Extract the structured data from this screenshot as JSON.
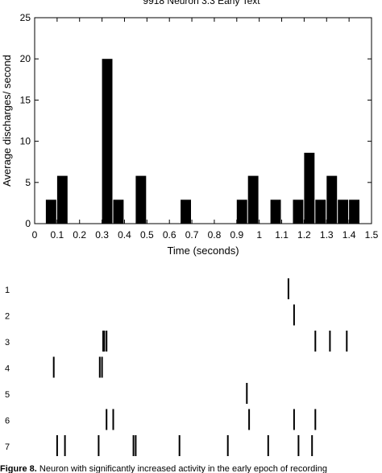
{
  "chart_data": [
    {
      "type": "bar",
      "title": "9918 Neuron 3.3 Early Text",
      "xlabel": "Time (seconds)",
      "ylabel": "Average discharges/ second",
      "xlim": [
        0,
        1.5
      ],
      "ylim": [
        0,
        25
      ],
      "xticks": [
        "0",
        "0.1",
        "0.2",
        "0.3",
        "0.4",
        "0.5",
        "0.6",
        "0.7",
        "0.8",
        "0.9",
        "1",
        "1.1",
        "1.2",
        "1.3",
        "1.4",
        "1.5"
      ],
      "yticks": [
        "0",
        "5",
        "10",
        "15",
        "20",
        "25"
      ],
      "grid": false,
      "bin_width": 0.05,
      "bars": [
        {
          "x": 0.05,
          "value": 2.9
        },
        {
          "x": 0.1,
          "value": 5.8
        },
        {
          "x": 0.3,
          "value": 20.0
        },
        {
          "x": 0.35,
          "value": 2.9
        },
        {
          "x": 0.45,
          "value": 5.8
        },
        {
          "x": 0.65,
          "value": 2.9
        },
        {
          "x": 0.9,
          "value": 2.9
        },
        {
          "x": 0.95,
          "value": 5.8
        },
        {
          "x": 1.05,
          "value": 2.9
        },
        {
          "x": 1.15,
          "value": 2.9
        },
        {
          "x": 1.2,
          "value": 8.6
        },
        {
          "x": 1.25,
          "value": 2.9
        },
        {
          "x": 1.3,
          "value": 5.8
        },
        {
          "x": 1.35,
          "value": 2.9
        },
        {
          "x": 1.4,
          "value": 2.9
        }
      ]
    },
    {
      "type": "raster",
      "xlim": [
        0,
        1.5
      ],
      "trials": [
        {
          "label": "1",
          "spikes": [
            1.13
          ]
        },
        {
          "label": "2",
          "spikes": [
            1.155
          ]
        },
        {
          "label": "3",
          "spikes": [
            0.305,
            0.31,
            0.32,
            1.25,
            1.315,
            1.39
          ]
        },
        {
          "label": "4",
          "spikes": [
            0.085,
            0.29,
            0.3
          ]
        },
        {
          "label": "5",
          "spikes": [
            0.945
          ]
        },
        {
          "label": "6",
          "spikes": [
            0.32,
            0.35,
            0.955,
            1.155,
            1.25
          ]
        },
        {
          "label": "7",
          "spikes": [
            0.1,
            0.135,
            0.285,
            0.44,
            0.45,
            0.645,
            0.86,
            1.04,
            1.175,
            1.235
          ]
        }
      ]
    }
  ],
  "caption": {
    "label": "Figure 8.",
    "text": " Neuron with significantly increased activity in the early epoch of recording"
  }
}
